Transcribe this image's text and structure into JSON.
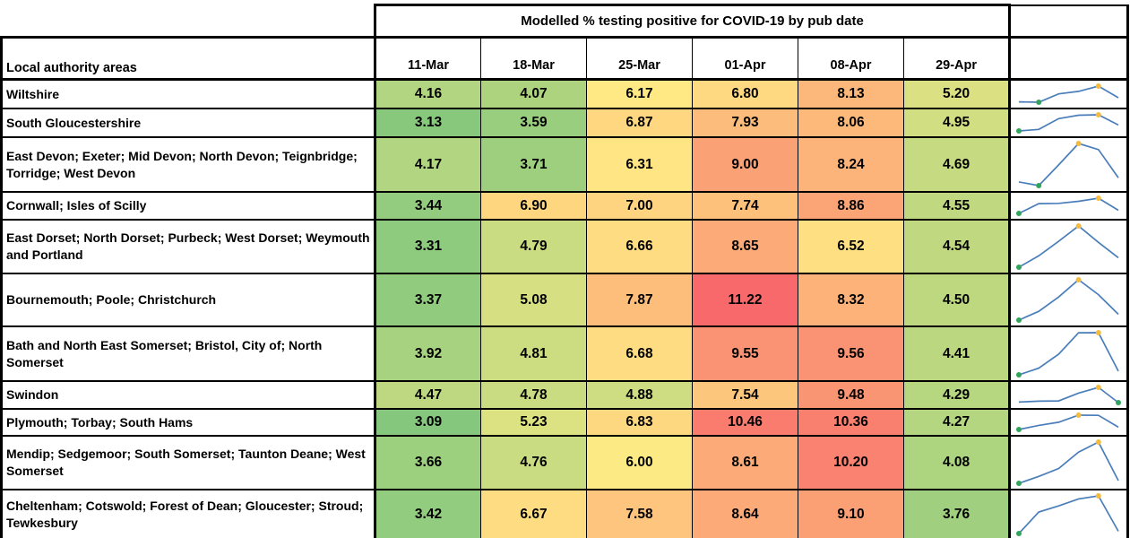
{
  "chart_data": {
    "type": "heatmap",
    "title": "Modelled % testing positive for COVID-19 by pub date",
    "row_header_label": "Local authority areas",
    "columns": [
      "11-Mar",
      "18-Mar",
      "25-Mar",
      "01-Apr",
      "08-Apr",
      "29-Apr"
    ],
    "rows": [
      {
        "area": "Wiltshire",
        "values": [
          4.16,
          4.07,
          6.17,
          6.8,
          8.13,
          5.2
        ]
      },
      {
        "area": "South Gloucestershire",
        "values": [
          3.13,
          3.59,
          6.87,
          7.93,
          8.06,
          4.95
        ]
      },
      {
        "area": "East Devon; Exeter; Mid Devon; North Devon; Teignbridge; Torridge; West Devon",
        "values": [
          4.17,
          3.71,
          6.31,
          9.0,
          8.24,
          4.69
        ]
      },
      {
        "area": "Cornwall; Isles of Scilly",
        "values": [
          3.44,
          6.9,
          7.0,
          7.74,
          8.86,
          4.55
        ]
      },
      {
        "area": "East Dorset; North Dorset; Purbeck; West Dorset; Weymouth and Portland",
        "values": [
          3.31,
          4.79,
          6.66,
          8.65,
          6.52,
          4.54
        ]
      },
      {
        "area": "Bournemouth; Poole; Christchurch",
        "values": [
          3.37,
          5.08,
          7.87,
          11.22,
          8.32,
          4.5
        ]
      },
      {
        "area": "Bath and North East Somerset; Bristol, City of; North Somerset",
        "values": [
          3.92,
          4.81,
          6.68,
          9.55,
          9.56,
          4.41
        ]
      },
      {
        "area": "Swindon",
        "values": [
          4.47,
          4.78,
          4.88,
          7.54,
          9.48,
          4.29
        ]
      },
      {
        "area": "Plymouth; Torbay; South Hams",
        "values": [
          3.09,
          5.23,
          6.83,
          10.46,
          10.36,
          4.27
        ]
      },
      {
        "area": "Mendip; Sedgemoor; South Somerset; Taunton Deane; West Somerset",
        "values": [
          3.66,
          4.76,
          6.0,
          8.61,
          10.2,
          4.08
        ]
      },
      {
        "area": "Cheltenham; Cotswold; Forest of Dean; Gloucester; Stroud; Tewkesbury",
        "values": [
          3.42,
          6.67,
          7.58,
          8.64,
          9.1,
          3.76
        ]
      }
    ],
    "value_decimals": 2,
    "color_scale": {
      "midpoint": "median",
      "min_color": "#85C87D",
      "mid_color": "#FFEB84",
      "max_color": "#F8696B"
    },
    "sparklines": {
      "line_color": "#4A7EBB",
      "high_point_color": "#F5BB3D",
      "low_point_color": "#2FA45C"
    },
    "legend_position": "none",
    "grid": true
  }
}
